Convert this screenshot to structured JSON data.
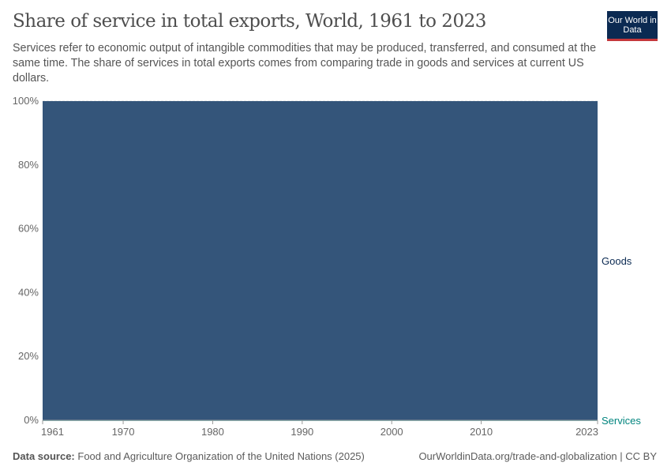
{
  "header": {
    "title": "Share of service in total exports, World, 1961 to 2023",
    "subtitle": "Services refer to economic output of intangible commodities that may be produced, transferred, and consumed at the same time. The share of services in total exports comes from comparing trade in goods and services at current US dollars.",
    "logo": "Our World in Data"
  },
  "footer": {
    "source_label": "Data source:",
    "source_text": "Food and Agriculture Organization of the United Nations (2025)",
    "url": "OurWorldinData.org/trade-and-globalization | CC BY"
  },
  "chart_data": {
    "type": "area",
    "stacked": true,
    "title": "Share of service in total exports, World, 1961 to 2023",
    "xlim": [
      1961,
      2023
    ],
    "ylim": [
      0,
      100
    ],
    "x_ticks": [
      "1961",
      "1970",
      "1980",
      "1990",
      "2000",
      "2010",
      "2023"
    ],
    "y_ticks": [
      "0%",
      "20%",
      "40%",
      "60%",
      "80%",
      "100%"
    ],
    "grid": "horizontal dashed",
    "legend": "right inline labels",
    "x": [
      1961,
      1962,
      1963,
      1964,
      1965,
      1966,
      1967,
      1968,
      1969,
      1970,
      1971,
      1972,
      1973,
      1974,
      1975,
      1976,
      1977,
      1978,
      1979,
      1980,
      1981,
      1982,
      1983,
      1984,
      1985,
      1986,
      1987,
      1988,
      1989,
      1990,
      1991,
      1992,
      1993,
      1994,
      1995,
      1996,
      1997,
      1998,
      1999,
      2000,
      2001,
      2002,
      2003,
      2004,
      2005,
      2006,
      2007,
      2008,
      2009,
      2010,
      2011,
      2012,
      2013,
      2014,
      2015,
      2016,
      2017,
      2018,
      2019,
      2020,
      2021,
      2022,
      2023
    ],
    "series": [
      {
        "name": "Services",
        "color": "#00847e",
        "values": [
          0,
          0,
          0,
          0,
          0,
          0,
          0,
          0,
          0,
          0,
          0,
          0,
          0,
          0,
          0,
          0,
          0,
          0,
          0,
          0,
          0,
          0,
          0,
          0,
          0,
          0,
          0,
          0,
          0,
          0,
          0,
          0,
          0,
          0,
          0,
          0,
          0,
          0,
          0,
          0,
          0,
          0,
          0,
          0,
          0,
          0,
          0,
          0,
          0,
          0,
          0,
          0,
          0,
          0,
          0,
          0,
          0,
          0,
          0,
          0,
          0,
          0,
          0
        ]
      },
      {
        "name": "Goods",
        "color": "#34557a",
        "values": [
          100,
          100,
          100,
          100,
          100,
          100,
          100,
          100,
          100,
          100,
          100,
          100,
          100,
          100,
          100,
          100,
          100,
          100,
          100,
          100,
          100,
          100,
          100,
          100,
          100,
          100,
          100,
          100,
          100,
          100,
          100,
          100,
          100,
          100,
          100,
          100,
          100,
          100,
          100,
          100,
          100,
          100,
          100,
          100,
          100,
          100,
          100,
          100,
          100,
          100,
          100,
          100,
          100,
          100,
          100,
          100,
          100,
          100,
          100,
          100,
          100,
          100,
          100
        ]
      }
    ],
    "label_colors": {
      "Goods": "#0b2a52",
      "Services": "#00847e"
    }
  }
}
